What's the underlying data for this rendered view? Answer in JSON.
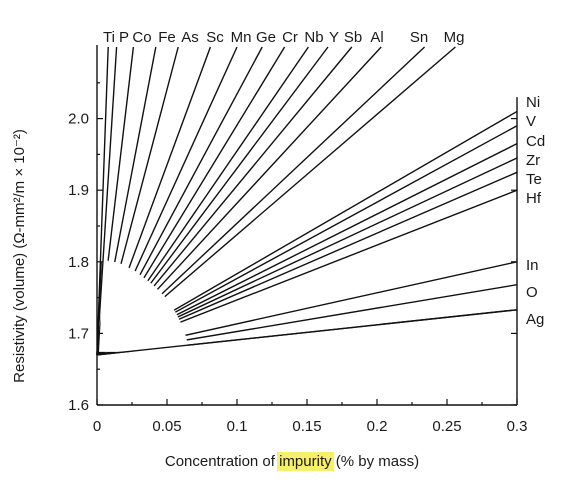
{
  "chart_data": {
    "type": "line",
    "title": "",
    "xlabel_parts": {
      "before": "Concentration of ",
      "highlight": "impurity",
      "after": " (% by mass)"
    },
    "highlight_color": "#f5ef6a",
    "ylabel": "Resistivity (volume) (Ω-mm²/m × 10⁻²)",
    "xlim": [
      0,
      0.3
    ],
    "ylim": [
      1.6,
      2.1
    ],
    "xticks": [
      "0",
      "0.05",
      "0.1",
      "0.15",
      "0.2",
      "0.25",
      "0.3"
    ],
    "yticks": [
      "1.6",
      "1.7",
      "1.8",
      "1.9",
      "2.0"
    ],
    "base_resistivity": 1.67,
    "series": [
      {
        "name": "Ti",
        "x": [
          0,
          0.008
        ],
        "y": [
          1.67,
          2.1
        ]
      },
      {
        "name": "P",
        "x": [
          0,
          0.014
        ],
        "y": [
          1.67,
          2.1
        ]
      },
      {
        "name": "Co",
        "x": [
          0,
          0.026
        ],
        "y": [
          1.67,
          2.1
        ]
      },
      {
        "name": "Fe",
        "x": [
          0,
          0.042
        ],
        "y": [
          1.67,
          2.1
        ]
      },
      {
        "name": "As",
        "x": [
          0,
          0.058
        ],
        "y": [
          1.67,
          2.1
        ]
      },
      {
        "name": "Sc",
        "x": [
          0,
          0.081
        ],
        "y": [
          1.67,
          2.1
        ]
      },
      {
        "name": "Mn",
        "x": [
          0,
          0.1
        ],
        "y": [
          1.67,
          2.1
        ]
      },
      {
        "name": "Ge",
        "x": [
          0,
          0.118
        ],
        "y": [
          1.67,
          2.1
        ]
      },
      {
        "name": "Cr",
        "x": [
          0,
          0.134
        ],
        "y": [
          1.67,
          2.1
        ]
      },
      {
        "name": "Nb",
        "x": [
          0,
          0.151
        ],
        "y": [
          1.67,
          2.1
        ]
      },
      {
        "name": "Y",
        "x": [
          0,
          0.165
        ],
        "y": [
          1.67,
          2.1
        ]
      },
      {
        "name": "Sb",
        "x": [
          0,
          0.182
        ],
        "y": [
          1.67,
          2.1
        ]
      },
      {
        "name": "Al",
        "x": [
          0,
          0.203
        ],
        "y": [
          1.67,
          2.1
        ]
      },
      {
        "name": "Sn",
        "x": [
          0,
          0.234
        ],
        "y": [
          1.67,
          2.1
        ]
      },
      {
        "name": "Mg",
        "x": [
          0,
          0.256
        ],
        "y": [
          1.67,
          2.1
        ]
      },
      {
        "name": "Ni",
        "x": [
          0,
          0.3
        ],
        "y": [
          1.67,
          2.01
        ]
      },
      {
        "name": "V",
        "x": [
          0,
          0.3
        ],
        "y": [
          1.67,
          1.99
        ]
      },
      {
        "name": "Cd",
        "x": [
          0,
          0.3
        ],
        "y": [
          1.67,
          1.965
        ]
      },
      {
        "name": "Zr",
        "x": [
          0,
          0.3
        ],
        "y": [
          1.67,
          1.945
        ]
      },
      {
        "name": "Te",
        "x": [
          0,
          0.3
        ],
        "y": [
          1.67,
          1.925
        ]
      },
      {
        "name": "Hf",
        "x": [
          0,
          0.3
        ],
        "y": [
          1.67,
          1.9
        ]
      },
      {
        "name": "In",
        "x": [
          0,
          0.3
        ],
        "y": [
          1.67,
          1.8
        ]
      },
      {
        "name": "O",
        "x": [
          0,
          0.3
        ],
        "y": [
          1.67,
          1.768
        ]
      },
      {
        "name": "Ag",
        "x": [
          0,
          0.3
        ],
        "y": [
          1.67,
          1.733
        ]
      }
    ]
  }
}
